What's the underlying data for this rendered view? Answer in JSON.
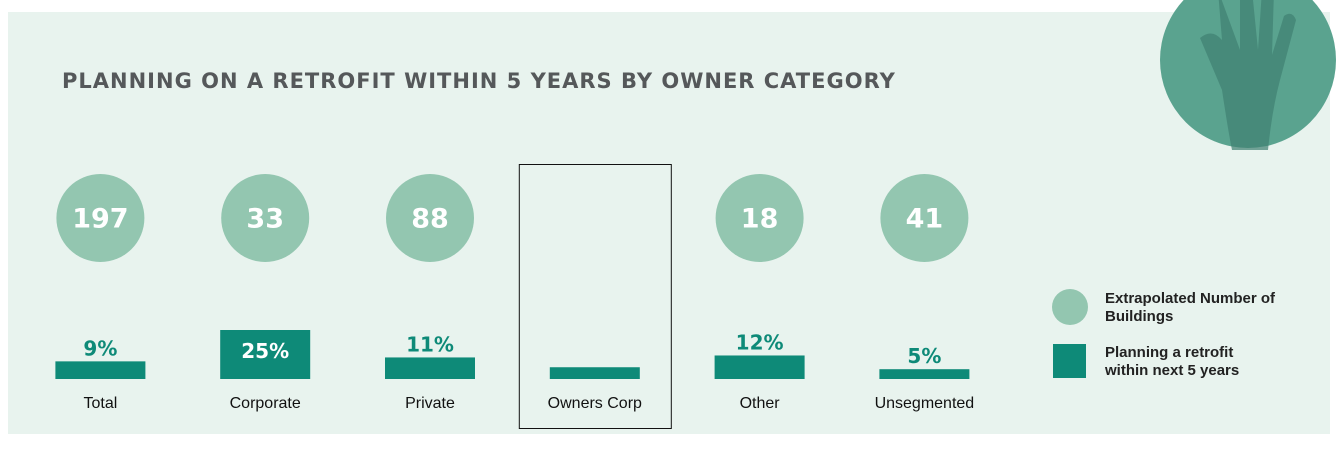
{
  "chart_data": {
    "type": "bar",
    "title": "PLANNING ON A RETROFIT WITHIN 5 YEARS BY OWNER CATEGORY",
    "categories": [
      "Total",
      "Corporate",
      "Private",
      "Owners Corp",
      "Other",
      "Unsegmented"
    ],
    "series": [
      {
        "name": "Extrapolated Number of Buildings",
        "color": "#93c6b0",
        "values": [
          197,
          33,
          88,
          null,
          18,
          41
        ]
      },
      {
        "name": "Planning a retrofit within next 5 years",
        "color": "#0e8a78",
        "values": [
          9,
          25,
          11,
          6,
          12,
          5
        ],
        "value_labels": [
          "9%",
          "25%",
          "11%",
          null,
          "12%",
          "5%"
        ]
      }
    ],
    "highlight": 3
  }
}
